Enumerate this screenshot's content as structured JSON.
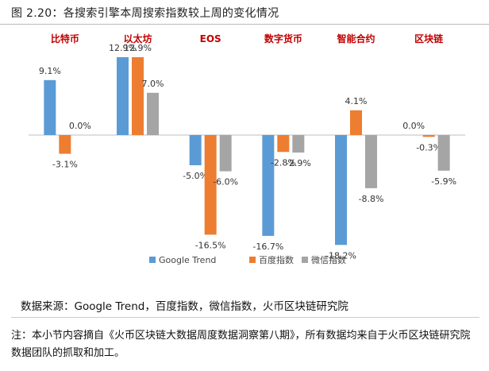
{
  "figure_title": "图 2.20：各搜索引擎本周搜索指数较上周的变化情况",
  "source_text": "数据来源：Google Trend，百度指数，微信指数，火币区块链研究院",
  "note_text": "注：本小节内容摘自《火币区块链大数据周度数据洞察第八期》，所有数据均来自于火币区块链研究院数据团队的抓取和加工。",
  "chart_data": {
    "type": "bar",
    "title": "",
    "xlabel": "",
    "ylabel": "",
    "ylim": [
      -20,
      15
    ],
    "grid": false,
    "legend_position": "bottom",
    "categories": [
      "比特币",
      "以太坊",
      "EOS",
      "数字货币",
      "智能合约",
      "区块链"
    ],
    "series": [
      {
        "name": "Google Trend",
        "color": "#5b9bd5",
        "values": [
          9.1,
          12.9,
          -5.0,
          -16.7,
          -18.2,
          0.0
        ],
        "labels": [
          "9.1%",
          "12.9%",
          "-5.0%",
          "-16.7%",
          "-18.2%",
          "0.0%"
        ]
      },
      {
        "name": "百度指数",
        "color": "#ed7d31",
        "values": [
          -3.1,
          12.9,
          -16.5,
          -2.8,
          4.1,
          -0.3
        ],
        "labels": [
          "-3.1%",
          "12.9%",
          "-16.5%",
          "-2.8%",
          "4.1%",
          "-0.3%"
        ]
      },
      {
        "name": "微信指数",
        "color": "#a5a5a5",
        "values": [
          0.0,
          7.0,
          -6.0,
          -2.9,
          -8.8,
          -5.9
        ],
        "labels": [
          "0.0%",
          "7.0%",
          "-6.0%",
          "-2.9%",
          "-8.8%",
          "-5.9%"
        ]
      }
    ],
    "category_label_color": "#c00000"
  }
}
